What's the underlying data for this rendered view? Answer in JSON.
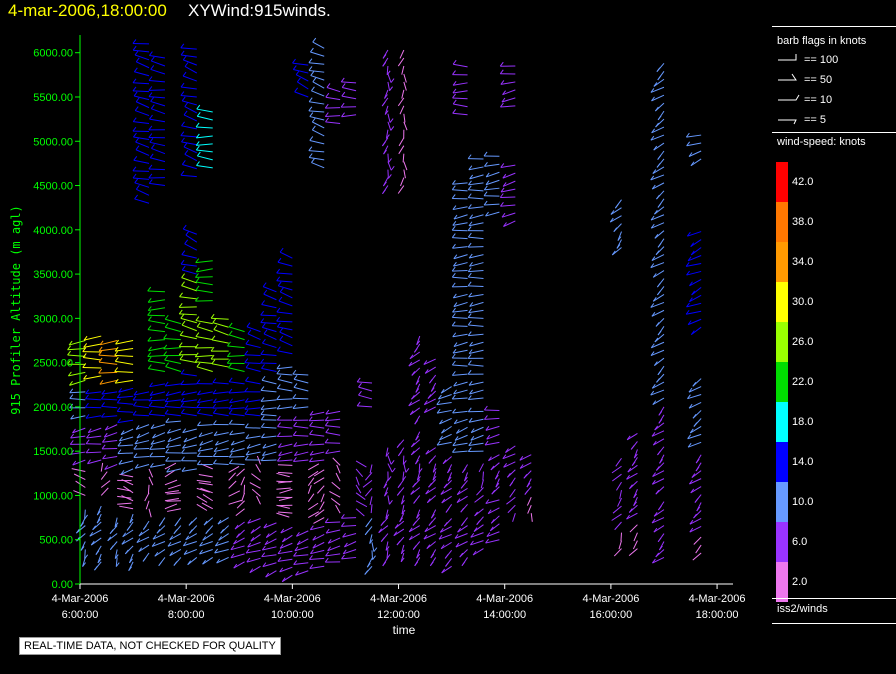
{
  "title": {
    "date": "4-mar-2006,18:00:00",
    "main": "XYWind:915winds."
  },
  "colors": {
    "title_date": "#ffff00",
    "axis": "#00ff00",
    "text": "#ffffff",
    "background": "#000000"
  },
  "legend": {
    "flags_title": "barb flags in knots",
    "flags": [
      {
        "label": "== 100",
        "value": 100
      },
      {
        "label": "== 50",
        "value": 50
      },
      {
        "label": "== 10",
        "value": 10
      },
      {
        "label": "== 5",
        "value": 5
      }
    ],
    "colorbar_title": "wind-speed: knots",
    "colorbar": [
      {
        "label": "42.0",
        "color": "#ff0000"
      },
      {
        "label": "38.0",
        "color": "#ff7700"
      },
      {
        "label": "34.0",
        "color": "#ff9900"
      },
      {
        "label": "30.0",
        "color": "#ffff00"
      },
      {
        "label": "26.0",
        "color": "#99ff00"
      },
      {
        "label": "22.0",
        "color": "#00dd00"
      },
      {
        "label": "18.0",
        "color": "#00ffff"
      },
      {
        "label": "14.0",
        "color": "#0000ff"
      },
      {
        "label": "10.0",
        "color": "#6699ff"
      },
      {
        "label": "6.0",
        "color": "#9933ff"
      },
      {
        "label": "2.0",
        "color": "#ee77ee"
      }
    ],
    "source": "iss2/winds"
  },
  "qc_note": "REAL-TIME DATA, NOT CHECKED FOR QUALITY",
  "chart_data": {
    "type": "wind-barb time-height",
    "title": "XYWind:915winds.",
    "xlabel": "time",
    "ylabel": "915 Profiler Altitude (m agl)",
    "x_range_hours": [
      6.0,
      18.3
    ],
    "ylim": [
      0,
      6200
    ],
    "x_ticks": [
      {
        "hour": 6,
        "date": "4-Mar-2006",
        "time": "6:00:00"
      },
      {
        "hour": 8,
        "date": "4-Mar-2006",
        "time": "8:00:00"
      },
      {
        "hour": 10,
        "date": "4-Mar-2006",
        "time": "10:00:00"
      },
      {
        "hour": 12,
        "date": "4-Mar-2006",
        "time": "12:00:00"
      },
      {
        "hour": 14,
        "date": "4-Mar-2006",
        "time": "14:00:00"
      },
      {
        "hour": 16,
        "date": "4-Mar-2006",
        "time": "16:00:00"
      },
      {
        "hour": 18,
        "date": "4-Mar-2006",
        "time": "18:00:00"
      }
    ],
    "y_ticks": [
      "0.00",
      "500.00",
      "1000.00",
      "1500.00",
      "2000.00",
      "2500.00",
      "3000.00",
      "3500.00",
      "4000.00",
      "4500.00",
      "5000.00",
      "5500.00",
      "6000.00"
    ],
    "y_tick_values": [
      0,
      500,
      1000,
      1500,
      2000,
      2500,
      3000,
      3500,
      4000,
      4500,
      5000,
      5500,
      6000
    ],
    "profiles": [
      {
        "time": 6.1,
        "segments": [
          [
            300,
            900,
            10,
            200
          ],
          [
            1000,
            1300,
            3,
            300
          ],
          [
            1400,
            1800,
            7,
            250
          ],
          [
            1900,
            2250,
            11,
            260
          ],
          [
            2300,
            2800,
            26,
            260
          ]
        ]
      },
      {
        "time": 6.4,
        "segments": [
          [
            250,
            900,
            10,
            210
          ],
          [
            1000,
            1300,
            3,
            20
          ],
          [
            1400,
            1800,
            7,
            255
          ],
          [
            1900,
            2250,
            12,
            260
          ],
          [
            2350,
            2800,
            30,
            265
          ]
        ]
      },
      {
        "time": 6.7,
        "segments": [
          [
            300,
            800,
            9,
            200
          ],
          [
            900,
            1250,
            3,
            90
          ],
          [
            1350,
            1800,
            7,
            250
          ],
          [
            1900,
            2250,
            12,
            262
          ],
          [
            2300,
            2800,
            34,
            265
          ]
        ]
      },
      {
        "time": 7.0,
        "segments": [
          [
            250,
            800,
            9,
            210
          ],
          [
            850,
            1250,
            3,
            300
          ],
          [
            1300,
            1800,
            8,
            250
          ],
          [
            1850,
            2250,
            13,
            262
          ],
          [
            2300,
            2750,
            30,
            268
          ]
        ]
      },
      {
        "time": 7.3,
        "segments": [
          [
            350,
            750,
            8,
            215
          ],
          [
            850,
            1300,
            3,
            180
          ],
          [
            1350,
            1800,
            8,
            250
          ],
          [
            1900,
            2250,
            13,
            265
          ],
          [
            4300,
            6100,
            14,
            290
          ]
        ]
      },
      {
        "time": 7.6,
        "segments": [
          [
            300,
            750,
            8,
            220
          ],
          [
            850,
            1300,
            3,
            60
          ],
          [
            1350,
            1800,
            9,
            252
          ],
          [
            1900,
            2300,
            14,
            265
          ],
          [
            2400,
            3300,
            22,
            270
          ],
          [
            4500,
            6000,
            14,
            285
          ]
        ]
      },
      {
        "time": 7.9,
        "segments": [
          [
            300,
            750,
            8,
            220
          ],
          [
            850,
            1200,
            3,
            250
          ],
          [
            1300,
            1850,
            8,
            255
          ],
          [
            1900,
            2300,
            14,
            265
          ],
          [
            2400,
            3000,
            22,
            280
          ]
        ]
      },
      {
        "time": 8.2,
        "segments": [
          [
            300,
            800,
            8,
            225
          ],
          [
            900,
            1250,
            3,
            120
          ],
          [
            1300,
            1800,
            9,
            255
          ],
          [
            1900,
            2400,
            14,
            268
          ],
          [
            2500,
            3400,
            24,
            285
          ],
          [
            3500,
            4000,
            14,
            300
          ],
          [
            4600,
            6100,
            14,
            295
          ]
        ]
      },
      {
        "time": 8.5,
        "segments": [
          [
            300,
            800,
            8,
            225
          ],
          [
            850,
            1300,
            3,
            300
          ],
          [
            1350,
            1800,
            9,
            255
          ],
          [
            1900,
            2300,
            13,
            268
          ],
          [
            2400,
            3000,
            24,
            280
          ],
          [
            3200,
            3700,
            22,
            270
          ],
          [
            4700,
            5400,
            18,
            275
          ]
        ]
      },
      {
        "time": 8.8,
        "segments": [
          [
            300,
            800,
            8,
            230
          ],
          [
            900,
            1300,
            3,
            45
          ],
          [
            1350,
            1800,
            9,
            258
          ],
          [
            1900,
            2300,
            13,
            270
          ],
          [
            2450,
            3000,
            24,
            285
          ]
        ]
      },
      {
        "time": 9.1,
        "segments": [
          [
            250,
            750,
            7,
            230
          ],
          [
            850,
            1300,
            3,
            200
          ],
          [
            1350,
            1800,
            9,
            258
          ],
          [
            1900,
            2300,
            12,
            270
          ],
          [
            2400,
            2900,
            22,
            282
          ]
        ]
      },
      {
        "time": 9.4,
        "segments": [
          [
            200,
            800,
            7,
            235
          ],
          [
            900,
            1350,
            3,
            330
          ],
          [
            1400,
            1800,
            8,
            260
          ],
          [
            1900,
            2300,
            12,
            272
          ],
          [
            2400,
            2900,
            12,
            290
          ]
        ]
      },
      {
        "time": 9.7,
        "segments": [
          [
            150,
            700,
            7,
            240
          ],
          [
            800,
            1300,
            3,
            100
          ],
          [
            1400,
            1850,
            8,
            260
          ],
          [
            1900,
            2300,
            11,
            275
          ],
          [
            2400,
            3300,
            12,
            290
          ]
        ]
      },
      {
        "time": 10.0,
        "segments": [
          [
            100,
            700,
            6,
            240
          ],
          [
            800,
            1350,
            3,
            260
          ],
          [
            1400,
            1900,
            7,
            262
          ],
          [
            2000,
            2500,
            11,
            275
          ],
          [
            2600,
            3700,
            12,
            292
          ]
        ]
      },
      {
        "time": 10.3,
        "segments": [
          [
            150,
            650,
            6,
            245
          ],
          [
            750,
            1300,
            3,
            30
          ],
          [
            1400,
            1900,
            7,
            265
          ],
          [
            2000,
            2400,
            10,
            278
          ],
          [
            5500,
            5900,
            14,
            300
          ]
        ]
      },
      {
        "time": 10.6,
        "segments": [
          [
            200,
            650,
            6,
            245
          ],
          [
            750,
            1300,
            3,
            210
          ],
          [
            1400,
            2000,
            7,
            268
          ],
          [
            4700,
            6100,
            10,
            295
          ]
        ]
      },
      {
        "time": 10.9,
        "segments": [
          [
            250,
            700,
            6,
            250
          ],
          [
            800,
            1350,
            3,
            330
          ],
          [
            1500,
            2000,
            7,
            270
          ],
          [
            5200,
            5600,
            6,
            280
          ]
        ]
      },
      {
        "time": 11.2,
        "segments": [
          [
            300,
            750,
            5,
            250
          ],
          [
            850,
            1400,
            4,
            150
          ],
          [
            5300,
            5700,
            6,
            275
          ]
        ]
      },
      {
        "time": 11.5,
        "segments": [
          [
            200,
            800,
            10,
            190
          ],
          [
            900,
            1400,
            4,
            200
          ],
          [
            2000,
            2300,
            6,
            280
          ]
        ]
      },
      {
        "time": 11.8,
        "segments": [
          [
            300,
            900,
            7,
            200
          ],
          [
            1000,
            1600,
            6,
            180
          ],
          [
            4500,
            6100,
            5,
            185
          ]
        ]
      },
      {
        "time": 12.1,
        "segments": [
          [
            350,
            950,
            6,
            205
          ],
          [
            1000,
            1700,
            5,
            190
          ],
          [
            4500,
            6100,
            3,
            185
          ]
        ]
      },
      {
        "time": 12.4,
        "segments": [
          [
            300,
            900,
            6,
            210
          ],
          [
            1000,
            1800,
            5,
            200
          ],
          [
            1900,
            2800,
            6,
            210
          ]
        ]
      },
      {
        "time": 12.7,
        "segments": [
          [
            300,
            900,
            6,
            215
          ],
          [
            1000,
            1600,
            5,
            205
          ],
          [
            2000,
            2600,
            6,
            215
          ]
        ]
      },
      {
        "time": 13.0,
        "segments": [
          [
            200,
            800,
            6,
            220
          ],
          [
            900,
            1500,
            5,
            210
          ],
          [
            1600,
            2300,
            8,
            240
          ]
        ]
      },
      {
        "time": 13.3,
        "segments": [
          [
            300,
            800,
            6,
            220
          ],
          [
            900,
            1400,
            5,
            210
          ],
          [
            1500,
            2000,
            8,
            245
          ],
          [
            2100,
            4600,
            9,
            260
          ],
          [
            5300,
            5900,
            7,
            270
          ]
        ]
      },
      {
        "time": 13.6,
        "segments": [
          [
            400,
            900,
            6,
            225
          ],
          [
            1000,
            1400,
            4,
            200
          ],
          [
            1500,
            2000,
            8,
            250
          ],
          [
            2100,
            4800,
            9,
            262
          ]
        ]
      },
      {
        "time": 13.9,
        "segments": [
          [
            500,
            1000,
            6,
            230
          ],
          [
            1100,
            1500,
            5,
            210
          ],
          [
            1600,
            2000,
            7,
            255
          ],
          [
            4200,
            4900,
            9,
            255
          ]
        ]
      },
      {
        "time": 14.2,
        "segments": [
          [
            800,
            1100,
            4,
            200
          ],
          [
            1200,
            1600,
            6,
            220
          ],
          [
            4100,
            4800,
            7,
            250
          ],
          [
            5400,
            5900,
            7,
            255
          ]
        ]
      },
      {
        "time": 14.5,
        "segments": [
          [
            800,
            1000,
            3,
            180
          ],
          [
            1100,
            1500,
            5,
            215
          ]
        ]
      },
      {
        "time": 16.2,
        "segments": [
          [
            400,
            600,
            3,
            200
          ],
          [
            700,
            1500,
            4,
            205
          ],
          [
            3800,
            4400,
            10,
            210
          ]
        ]
      },
      {
        "time": 16.5,
        "segments": [
          [
            400,
            700,
            3,
            210
          ],
          [
            800,
            1700,
            5,
            210
          ]
        ]
      },
      {
        "time": 17.0,
        "segments": [
          [
            300,
            1000,
            6,
            215
          ],
          [
            1100,
            2000,
            7,
            215
          ],
          [
            2100,
            5900,
            11,
            220
          ]
        ]
      },
      {
        "time": 17.7,
        "segments": [
          [
            350,
            550,
            3,
            220
          ],
          [
            650,
            1500,
            5,
            215
          ],
          [
            1600,
            2400,
            9,
            225
          ],
          [
            2900,
            4000,
            12,
            235
          ],
          [
            4800,
            5100,
            8,
            240
          ]
        ]
      }
    ]
  }
}
